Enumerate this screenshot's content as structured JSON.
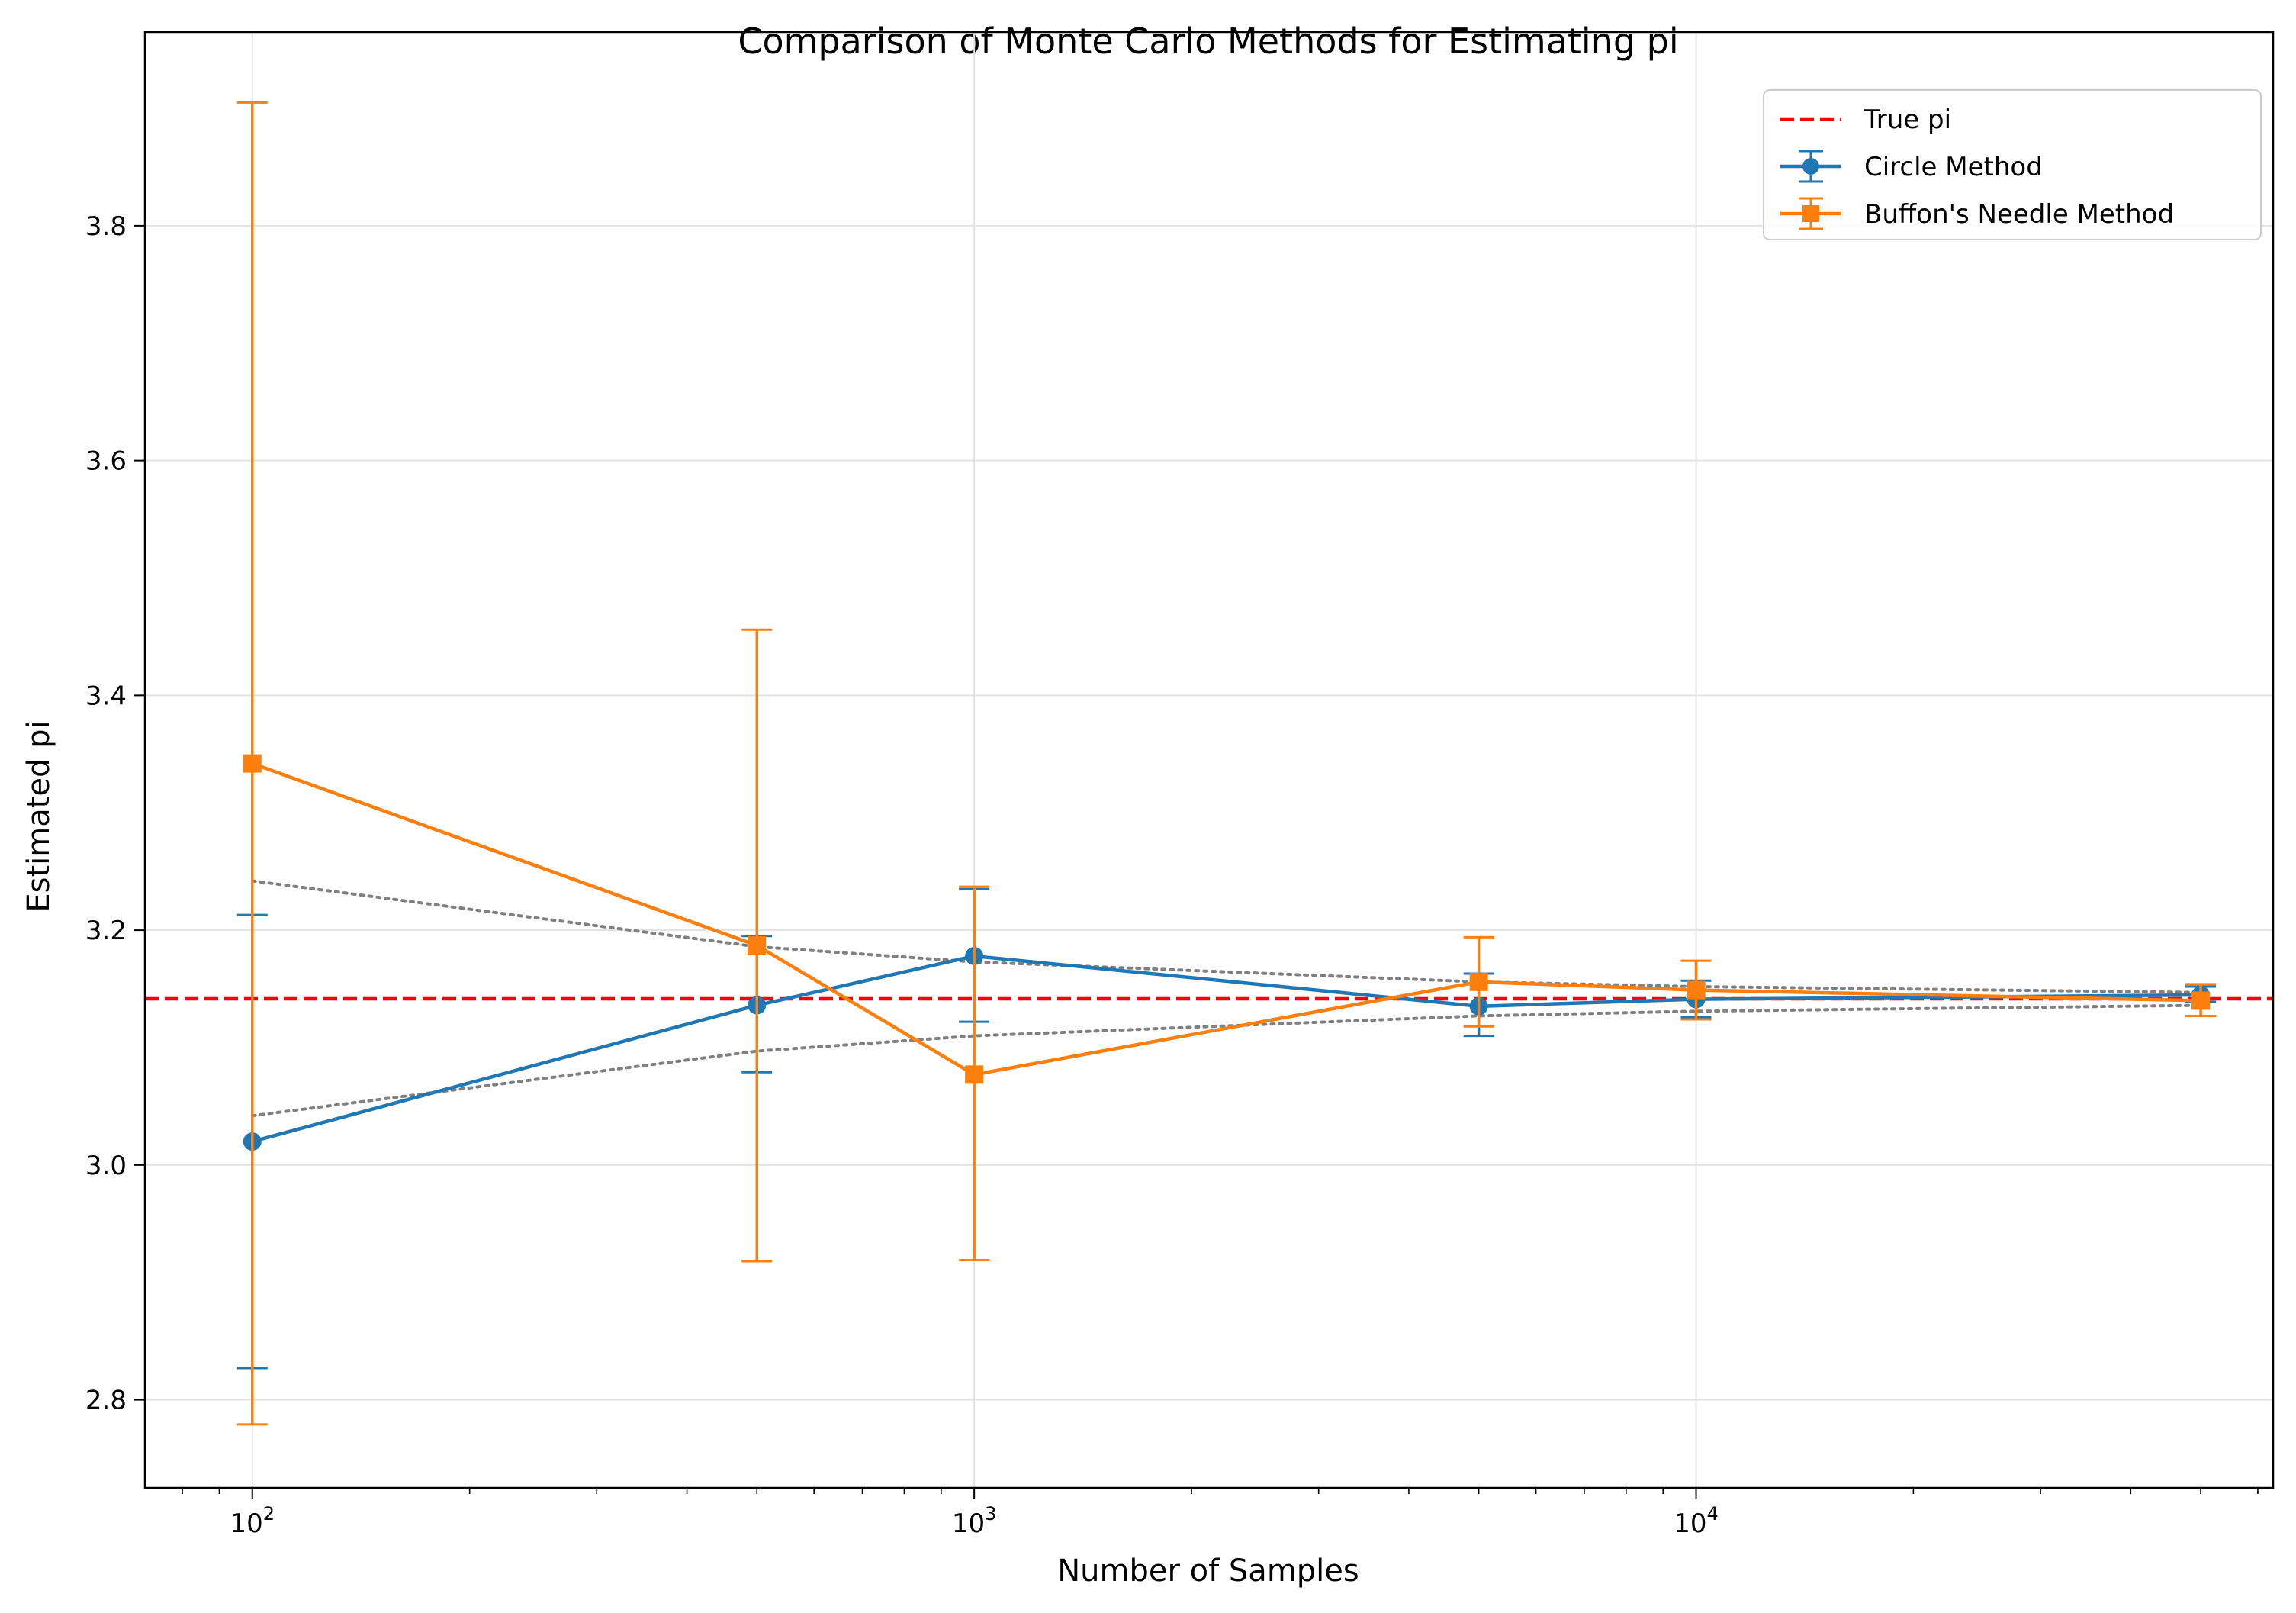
{
  "chart_data": {
    "type": "line",
    "title": "Comparison of Monte Carlo Methods for Estimating pi",
    "xlabel": "Number of Samples",
    "ylabel": "Estimated pi",
    "x_scale": "log",
    "xlim": [
      71,
      63000
    ],
    "ylim": [
      2.725,
      3.965
    ],
    "x_ticks": [
      {
        "value": 100,
        "base": "10",
        "exp": "2"
      },
      {
        "value": 1000,
        "base": "10",
        "exp": "3"
      },
      {
        "value": 10000,
        "base": "10",
        "exp": "4"
      }
    ],
    "y_ticks": [
      2.8,
      3.0,
      3.2,
      3.4,
      3.6,
      3.8
    ],
    "grid": true,
    "legend_position": "top-right",
    "reference_line": {
      "name": "True pi",
      "value": 3.14159,
      "color": "#ff0000",
      "style": "dashed"
    },
    "series": [
      {
        "name": "Circle Method",
        "color": "#1f77b4",
        "marker": "circle",
        "x": [
          100,
          500,
          1000,
          5000,
          10000,
          50000
        ],
        "y": [
          3.02,
          3.136,
          3.178,
          3.1352,
          3.1412,
          3.1448
        ],
        "yerr_low": [
          2.827,
          3.079,
          3.122,
          3.11,
          3.126,
          3.139
        ],
        "yerr_high": [
          3.213,
          3.195,
          3.235,
          3.163,
          3.157,
          3.152
        ]
      },
      {
        "name": "Buffon's Needle Method",
        "color": "#ff7f0e",
        "marker": "square",
        "x": [
          100,
          500,
          1000,
          5000,
          10000,
          50000
        ],
        "y": [
          3.342,
          3.187,
          3.077,
          3.156,
          3.149,
          3.14
        ],
        "yerr_low": [
          2.779,
          2.918,
          2.919,
          3.118,
          3.124,
          3.127
        ],
        "yerr_high": [
          3.905,
          3.456,
          3.237,
          3.194,
          3.174,
          3.154
        ]
      }
    ],
    "envelope_lines": {
      "color": "#808080",
      "style": "dotted",
      "x": [
        100,
        500,
        1000,
        5000,
        10000,
        50000
      ],
      "upper": [
        3.242,
        3.186,
        3.173,
        3.156,
        3.152,
        3.147
      ],
      "lower": [
        3.042,
        3.097,
        3.11,
        3.127,
        3.131,
        3.136
      ]
    }
  }
}
